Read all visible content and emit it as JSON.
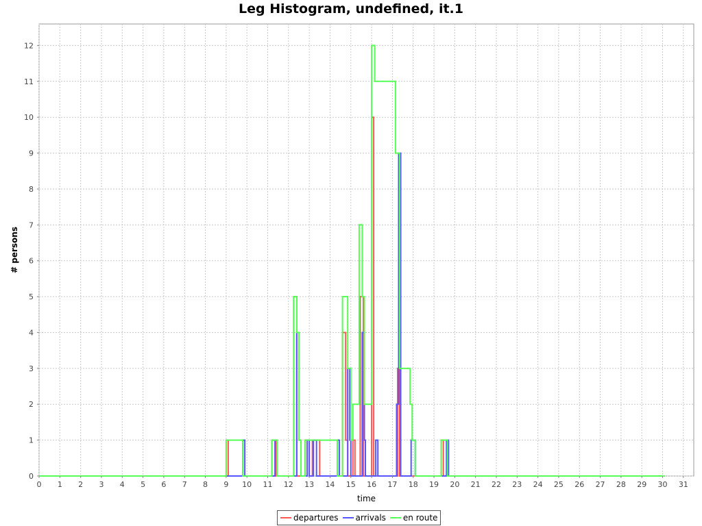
{
  "chart_data": {
    "type": "line",
    "title": "Leg Histogram, undefined, it.1",
    "xlabel": "time",
    "ylabel": "# persons",
    "xlim": [
      0,
      31.5
    ],
    "ylim": [
      0,
      12.6
    ],
    "x_ticks": [
      0,
      1,
      2,
      3,
      4,
      5,
      6,
      7,
      8,
      9,
      10,
      11,
      12,
      13,
      14,
      15,
      16,
      17,
      18,
      19,
      20,
      21,
      22,
      23,
      24,
      25,
      26,
      27,
      28,
      29,
      30,
      31
    ],
    "y_ticks": [
      0,
      1,
      2,
      3,
      4,
      5,
      6,
      7,
      8,
      9,
      10,
      11,
      12
    ],
    "grid": true,
    "legend_position": "bottom",
    "step": true,
    "series": [
      {
        "name": "departures",
        "color": "#ff5555",
        "points": [
          [
            0,
            0
          ],
          [
            9.0,
            0
          ],
          [
            9.0,
            1
          ],
          [
            9.1,
            1
          ],
          [
            9.1,
            0
          ],
          [
            11.2,
            0
          ],
          [
            11.2,
            1
          ],
          [
            11.4,
            1
          ],
          [
            11.4,
            0
          ],
          [
            12.25,
            0
          ],
          [
            12.25,
            5
          ],
          [
            12.4,
            5
          ],
          [
            12.4,
            0
          ],
          [
            12.8,
            0
          ],
          [
            12.8,
            1
          ],
          [
            13.0,
            1
          ],
          [
            13.0,
            0
          ],
          [
            13.15,
            0
          ],
          [
            13.15,
            1
          ],
          [
            13.5,
            1
          ],
          [
            13.5,
            0
          ],
          [
            14.6,
            0
          ],
          [
            14.6,
            4
          ],
          [
            14.75,
            4
          ],
          [
            14.75,
            1
          ],
          [
            14.85,
            1
          ],
          [
            14.85,
            0
          ],
          [
            15.1,
            0
          ],
          [
            15.1,
            1
          ],
          [
            15.2,
            1
          ],
          [
            15.2,
            0
          ],
          [
            15.45,
            0
          ],
          [
            15.45,
            5
          ],
          [
            15.6,
            5
          ],
          [
            15.6,
            0
          ],
          [
            16.0,
            0
          ],
          [
            16.0,
            10
          ],
          [
            16.1,
            10
          ],
          [
            16.1,
            0
          ],
          [
            17.25,
            0
          ],
          [
            17.25,
            3
          ],
          [
            17.35,
            3
          ],
          [
            17.35,
            0
          ],
          [
            19.35,
            0
          ],
          [
            19.35,
            1
          ],
          [
            19.45,
            1
          ],
          [
            19.45,
            0
          ],
          [
            30.1,
            0
          ]
        ]
      },
      {
        "name": "arrivals",
        "color": "#5555ff",
        "points": [
          [
            0,
            0
          ],
          [
            9.8,
            0
          ],
          [
            9.8,
            1
          ],
          [
            9.9,
            1
          ],
          [
            9.9,
            0
          ],
          [
            11.35,
            0
          ],
          [
            11.35,
            1
          ],
          [
            11.45,
            1
          ],
          [
            11.45,
            0
          ],
          [
            12.4,
            0
          ],
          [
            12.4,
            4
          ],
          [
            12.5,
            4
          ],
          [
            12.5,
            1
          ],
          [
            12.6,
            1
          ],
          [
            12.6,
            0
          ],
          [
            12.9,
            0
          ],
          [
            12.9,
            1
          ],
          [
            13.0,
            1
          ],
          [
            13.0,
            0
          ],
          [
            13.2,
            0
          ],
          [
            13.2,
            1
          ],
          [
            13.35,
            1
          ],
          [
            13.35,
            0
          ],
          [
            14.35,
            0
          ],
          [
            14.35,
            1
          ],
          [
            14.45,
            1
          ],
          [
            14.45,
            0
          ],
          [
            14.85,
            0
          ],
          [
            14.85,
            3
          ],
          [
            14.95,
            3
          ],
          [
            14.95,
            1
          ],
          [
            15.0,
            1
          ],
          [
            15.0,
            0
          ],
          [
            15.55,
            0
          ],
          [
            15.55,
            4
          ],
          [
            15.65,
            4
          ],
          [
            15.65,
            1
          ],
          [
            15.7,
            1
          ],
          [
            15.7,
            0
          ],
          [
            16.2,
            0
          ],
          [
            16.2,
            1
          ],
          [
            16.3,
            1
          ],
          [
            16.3,
            0
          ],
          [
            17.2,
            0
          ],
          [
            17.2,
            2
          ],
          [
            17.3,
            2
          ],
          [
            17.3,
            9
          ],
          [
            17.4,
            9
          ],
          [
            17.4,
            0
          ],
          [
            17.9,
            0
          ],
          [
            17.9,
            1
          ],
          [
            18.1,
            1
          ],
          [
            18.1,
            0
          ],
          [
            19.6,
            0
          ],
          [
            19.6,
            1
          ],
          [
            19.7,
            1
          ],
          [
            19.7,
            0
          ],
          [
            30.1,
            0
          ]
        ]
      },
      {
        "name": "en route",
        "color": "#55ff55",
        "points": [
          [
            0,
            0
          ],
          [
            9.0,
            0
          ],
          [
            9.0,
            1
          ],
          [
            9.8,
            1
          ],
          [
            9.8,
            0
          ],
          [
            11.2,
            0
          ],
          [
            11.2,
            1
          ],
          [
            11.45,
            1
          ],
          [
            11.45,
            0
          ],
          [
            12.25,
            0
          ],
          [
            12.25,
            5
          ],
          [
            12.4,
            5
          ],
          [
            12.4,
            4
          ],
          [
            12.5,
            4
          ],
          [
            12.5,
            1
          ],
          [
            12.6,
            1
          ],
          [
            12.6,
            0
          ],
          [
            12.8,
            0
          ],
          [
            12.8,
            1
          ],
          [
            14.35,
            1
          ],
          [
            14.35,
            0
          ],
          [
            14.6,
            0
          ],
          [
            14.6,
            5
          ],
          [
            14.85,
            5
          ],
          [
            14.85,
            3
          ],
          [
            15.0,
            3
          ],
          [
            15.0,
            1
          ],
          [
            15.1,
            1
          ],
          [
            15.1,
            2
          ],
          [
            15.4,
            2
          ],
          [
            15.4,
            7
          ],
          [
            15.55,
            7
          ],
          [
            15.55,
            5
          ],
          [
            15.65,
            5
          ],
          [
            15.65,
            2
          ],
          [
            16.0,
            2
          ],
          [
            16.0,
            12
          ],
          [
            16.15,
            12
          ],
          [
            16.15,
            11
          ],
          [
            17.15,
            11
          ],
          [
            17.15,
            9
          ],
          [
            17.35,
            9
          ],
          [
            17.35,
            3
          ],
          [
            17.85,
            3
          ],
          [
            17.85,
            2
          ],
          [
            17.95,
            2
          ],
          [
            17.95,
            1
          ],
          [
            18.1,
            1
          ],
          [
            18.1,
            0
          ],
          [
            19.35,
            0
          ],
          [
            19.35,
            1
          ],
          [
            19.65,
            1
          ],
          [
            19.65,
            0
          ],
          [
            30.1,
            0
          ]
        ]
      }
    ]
  }
}
